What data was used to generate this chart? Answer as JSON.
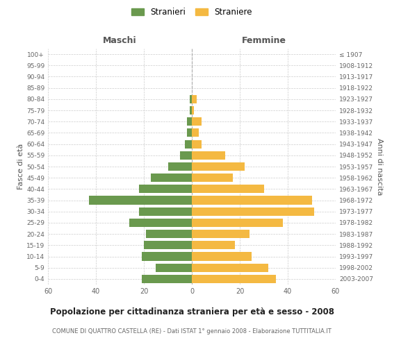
{
  "age_groups": [
    "0-4",
    "5-9",
    "10-14",
    "15-19",
    "20-24",
    "25-29",
    "30-34",
    "35-39",
    "40-44",
    "45-49",
    "50-54",
    "55-59",
    "60-64",
    "65-69",
    "70-74",
    "75-79",
    "80-84",
    "85-89",
    "90-94",
    "95-99",
    "100+"
  ],
  "birth_years": [
    "2003-2007",
    "1998-2002",
    "1993-1997",
    "1988-1992",
    "1983-1987",
    "1978-1982",
    "1973-1977",
    "1968-1972",
    "1963-1967",
    "1958-1962",
    "1953-1957",
    "1948-1952",
    "1943-1947",
    "1938-1942",
    "1933-1937",
    "1928-1932",
    "1923-1927",
    "1918-1922",
    "1913-1917",
    "1908-1912",
    "≤ 1907"
  ],
  "males": [
    21,
    15,
    21,
    20,
    19,
    26,
    22,
    43,
    22,
    17,
    10,
    5,
    3,
    2,
    2,
    1,
    1,
    0,
    0,
    0,
    0
  ],
  "females": [
    35,
    32,
    25,
    18,
    24,
    38,
    51,
    50,
    30,
    17,
    22,
    14,
    4,
    3,
    4,
    1,
    2,
    0,
    0,
    0,
    0
  ],
  "male_color": "#6a994e",
  "female_color": "#f4b942",
  "background_color": "#ffffff",
  "grid_color": "#cccccc",
  "title": "Popolazione per cittadinanza straniera per età e sesso - 2008",
  "subtitle": "COMUNE DI QUATTRO CASTELLA (RE) - Dati ISTAT 1° gennaio 2008 - Elaborazione TUTTITALIA.IT",
  "xlabel_left": "Maschi",
  "xlabel_right": "Femmine",
  "ylabel_left": "Fasce di età",
  "ylabel_right": "Anni di nascita",
  "legend_male": "Stranieri",
  "legend_female": "Straniere",
  "xlim": 60
}
